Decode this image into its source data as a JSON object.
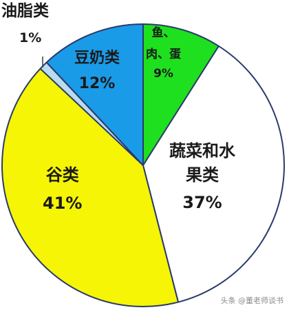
{
  "chart_data": {
    "type": "pie",
    "slices": [
      {
        "label": "鱼、肉、蛋",
        "percent_text": "9%",
        "value": 9,
        "color": "#1ee01e"
      },
      {
        "label": "蔬菜和水果类",
        "percent_text": "37%",
        "value": 37,
        "color": "#ffffff"
      },
      {
        "label": "谷类",
        "percent_text": "41%",
        "value": 41,
        "color": "#f5f505"
      },
      {
        "label": "油脂类",
        "percent_text": "1%",
        "value": 1,
        "color": "#b8dcf0"
      },
      {
        "label": "豆奶类",
        "percent_text": "12%",
        "value": 12,
        "color": "#1a9be8"
      }
    ],
    "label_text": {
      "meat_line1": "鱼、",
      "meat_line2": "肉、蛋",
      "veg_line1": "蔬菜和水",
      "veg_line2": "果类",
      "grain": "谷类",
      "oil": "油脂类",
      "dairy": "豆奶类"
    },
    "edge_color": "#2a3a6a"
  },
  "watermark": "头条 @董老师谈书"
}
